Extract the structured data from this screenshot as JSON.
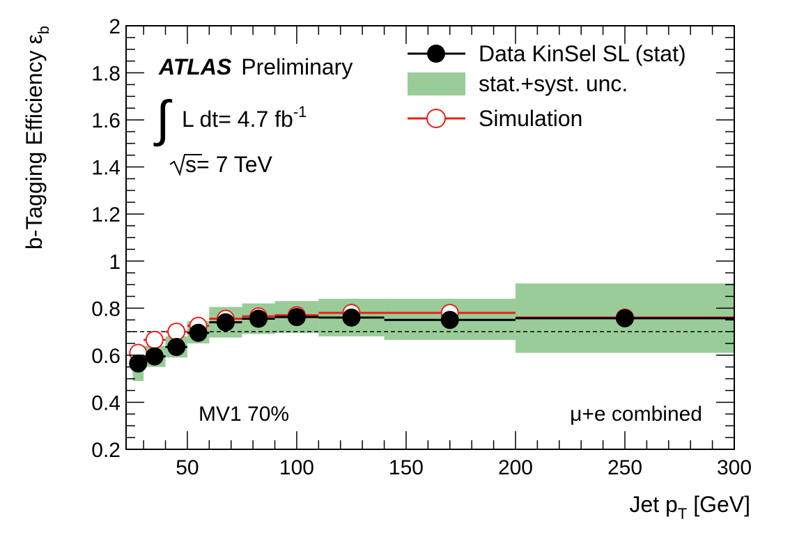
{
  "chart_data": {
    "type": "scatter",
    "xlabel": "Jet p",
    "xlabel_sub": "T",
    "xlabel_unit": " [GeV]",
    "ylabel": "b-Tagging Efficiency ε",
    "ylabel_sub": "b",
    "xlim": [
      22,
      300
    ],
    "ylim": [
      0.2,
      2.0
    ],
    "xticks": [
      50,
      100,
      150,
      200,
      250,
      300
    ],
    "yticks": [
      0.2,
      0.4,
      0.6,
      0.8,
      1.0,
      1.2,
      1.4,
      1.6,
      1.8,
      2.0
    ],
    "ytick_labels": [
      "0.2",
      "0.4",
      "0.6",
      "0.8",
      "1",
      "1.2",
      "1.4",
      "1.6",
      "1.8",
      "2"
    ],
    "reference_line": 0.7,
    "bins": [
      {
        "x_low": 25,
        "x_high": 30,
        "x": 27.5,
        "data": 0.565,
        "data_err": 0.015,
        "sim": 0.61,
        "band_low": 0.49,
        "band_high": 0.63
      },
      {
        "x_low": 30,
        "x_high": 40,
        "x": 35,
        "data": 0.595,
        "data_err": 0.015,
        "sim": 0.665,
        "band_low": 0.55,
        "band_high": 0.64
      },
      {
        "x_low": 40,
        "x_high": 50,
        "x": 45,
        "data": 0.635,
        "data_err": 0.015,
        "sim": 0.7,
        "band_low": 0.59,
        "band_high": 0.68
      },
      {
        "x_low": 50,
        "x_high": 60,
        "x": 55,
        "data": 0.695,
        "data_err": 0.012,
        "sim": 0.725,
        "band_low": 0.65,
        "band_high": 0.745
      },
      {
        "x_low": 60,
        "x_high": 75,
        "x": 67.5,
        "data": 0.74,
        "data_err": 0.012,
        "sim": 0.755,
        "band_low": 0.675,
        "band_high": 0.805
      },
      {
        "x_low": 75,
        "x_high": 90,
        "x": 82.5,
        "data": 0.755,
        "data_err": 0.012,
        "sim": 0.765,
        "band_low": 0.69,
        "band_high": 0.82
      },
      {
        "x_low": 90,
        "x_high": 110,
        "x": 100,
        "data": 0.762,
        "data_err": 0.012,
        "sim": 0.77,
        "band_low": 0.695,
        "band_high": 0.83
      },
      {
        "x_low": 110,
        "x_high": 140,
        "x": 125,
        "data": 0.76,
        "data_err": 0.012,
        "sim": 0.78,
        "band_low": 0.68,
        "band_high": 0.84
      },
      {
        "x_low": 140,
        "x_high": 200,
        "x": 170,
        "data": 0.75,
        "data_err": 0.012,
        "sim": 0.78,
        "band_low": 0.665,
        "band_high": 0.84
      },
      {
        "x_low": 200,
        "x_high": 300,
        "x": 250,
        "data": 0.757,
        "data_err": 0.012,
        "sim": 0.76,
        "band_low": 0.61,
        "band_high": 0.905
      }
    ],
    "legend": {
      "position": "top-right",
      "entries": [
        {
          "label": "Data KinSel SL (stat)",
          "style": "data"
        },
        {
          "label": "stat.+syst. unc.",
          "style": "band"
        },
        {
          "label": "Simulation",
          "style": "sim"
        }
      ]
    },
    "annotations": {
      "atlas": "ATLAS",
      "preliminary": "Preliminary",
      "lumi_prefix": "L dt= 4.7 fb",
      "lumi_exp": "-1",
      "energy": "s= 7 TeV",
      "tagger": "MV1 70%",
      "channel": "μ+e combined"
    },
    "colors": {
      "data": "#000000",
      "sim": "#e8221a",
      "band": "#99cc99",
      "axis": "#000000"
    }
  }
}
